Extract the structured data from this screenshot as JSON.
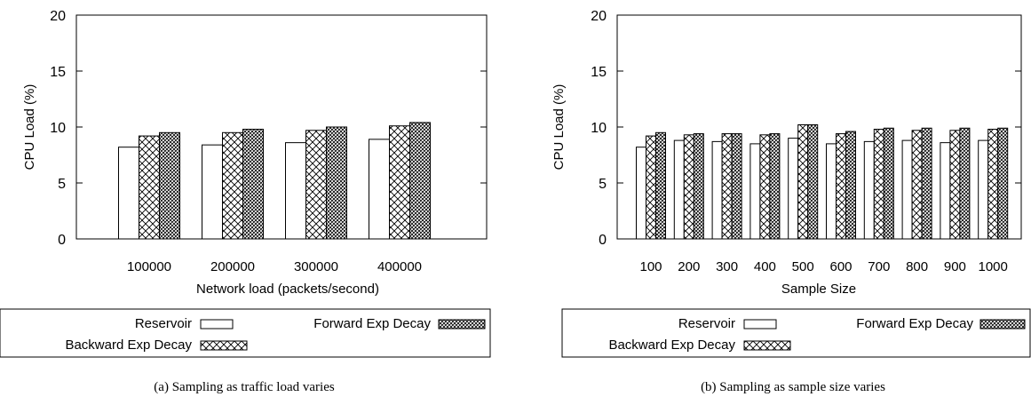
{
  "colors": {
    "ink": "#000000",
    "paper": "#ffffff"
  },
  "legend_items": [
    {
      "label": "Reservoir",
      "pattern": "none"
    },
    {
      "label": "Forward Exp Decay",
      "pattern": "dense-crosshatch"
    },
    {
      "label": "Backward Exp Decay",
      "pattern": "sparse-crosshatch"
    }
  ],
  "chart_data": [
    {
      "type": "bar",
      "xlabel": "Network load (packets/second)",
      "ylabel": "CPU Load (%)",
      "ylim": [
        0,
        20
      ],
      "yticks": [
        0,
        5,
        10,
        15,
        20
      ],
      "categories": [
        "100000",
        "200000",
        "300000",
        "400000"
      ],
      "series": [
        {
          "name": "Reservoir",
          "values": [
            8.2,
            8.4,
            8.6,
            8.9
          ]
        },
        {
          "name": "Backward Exp Decay",
          "values": [
            9.2,
            9.5,
            9.7,
            10.1
          ]
        },
        {
          "name": "Forward Exp Decay",
          "values": [
            9.5,
            9.8,
            10.0,
            10.4
          ]
        }
      ],
      "caption": "(a) Sampling as traffic load varies"
    },
    {
      "type": "bar",
      "xlabel": "Sample Size",
      "ylabel": "CPU Load (%)",
      "ylim": [
        0,
        20
      ],
      "yticks": [
        0,
        5,
        10,
        15,
        20
      ],
      "categories": [
        "100",
        "200",
        "300",
        "400",
        "500",
        "600",
        "700",
        "800",
        "900",
        "1000"
      ],
      "series": [
        {
          "name": "Reservoir",
          "values": [
            8.2,
            8.8,
            8.7,
            8.5,
            9.0,
            8.5,
            8.7,
            8.8,
            8.6,
            8.8
          ]
        },
        {
          "name": "Backward Exp Decay",
          "values": [
            9.2,
            9.3,
            9.4,
            9.3,
            10.2,
            9.4,
            9.8,
            9.7,
            9.7,
            9.8
          ]
        },
        {
          "name": "Forward Exp Decay",
          "values": [
            9.5,
            9.4,
            9.4,
            9.4,
            10.2,
            9.6,
            9.9,
            9.9,
            9.9,
            9.9
          ]
        }
      ],
      "caption": "(b) Sampling as sample size varies"
    }
  ]
}
